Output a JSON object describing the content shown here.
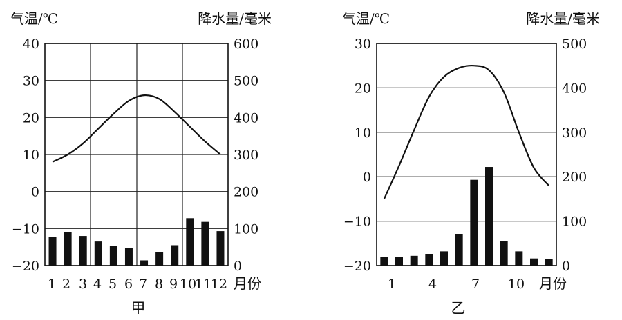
{
  "chart_data": [
    {
      "type": "bar+line",
      "caption": "甲",
      "left_axis_label": "气温/℃",
      "right_axis_label": "降水量/毫米",
      "x_unit_label": "月份",
      "temp_ylim": [
        -20,
        40
      ],
      "temp_ticks": [
        "40",
        "30",
        "20",
        "10",
        "0",
        "−10",
        "−20"
      ],
      "precip_ylim": [
        0,
        600
      ],
      "precip_ticks": [
        "600",
        "500",
        "400",
        "300",
        "200",
        "100",
        "0"
      ],
      "x_ticks": [
        "1",
        "2",
        "3",
        "4",
        "5",
        "6",
        "7",
        "8",
        "9",
        "10",
        "11",
        "12"
      ],
      "months": [
        1,
        2,
        3,
        4,
        5,
        6,
        7,
        8,
        9,
        10,
        11,
        12
      ],
      "temperature": [
        8,
        10,
        13,
        17,
        21,
        24.5,
        26,
        25,
        21.5,
        17.5,
        13.5,
        10
      ],
      "precipitation": [
        77,
        90,
        80,
        65,
        53,
        47,
        14,
        36,
        55,
        128,
        118,
        93
      ]
    },
    {
      "type": "bar+line",
      "caption": "乙",
      "left_axis_label": "气温/℃",
      "right_axis_label": "降水量/毫米",
      "x_unit_label": "月份",
      "temp_ylim": [
        -20,
        30
      ],
      "temp_ticks": [
        "30",
        "20",
        "10",
        "0",
        "−10",
        "−20"
      ],
      "precip_ylim": [
        0,
        500
      ],
      "precip_ticks": [
        "500",
        "400",
        "300",
        "200",
        "100",
        "0"
      ],
      "x_ticks": [
        "1",
        "4",
        "7",
        "10"
      ],
      "months": [
        1,
        2,
        3,
        4,
        5,
        6,
        7,
        8,
        9,
        10,
        11,
        12
      ],
      "temperature": [
        -5,
        2.5,
        10.5,
        18,
        22.5,
        24.5,
        25,
        24,
        19,
        10,
        2,
        -2
      ],
      "precipitation": [
        20,
        20,
        22,
        25,
        32,
        70,
        193,
        222,
        55,
        32,
        16,
        15
      ]
    }
  ]
}
